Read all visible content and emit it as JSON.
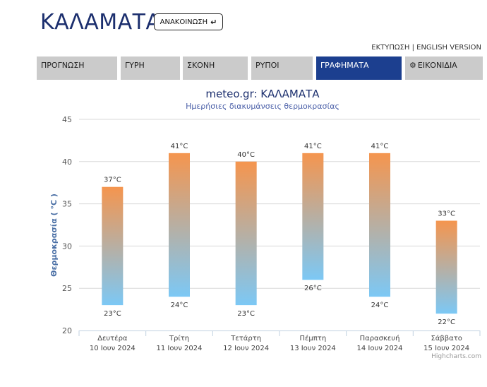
{
  "header": {
    "title": "ΚΑΛΑΜΑΤΑ",
    "announce_label": "ΑΝΑΚΟΙΝΩΣΗ",
    "announce_icon": "arrow-return-icon",
    "print_label": "ΕΚΤΥΠΩΣΗ",
    "separator": "|",
    "english_label": "ENGLISH VERSION"
  },
  "tabs": [
    {
      "label": "ΠΡΟΓΝΩΣΗ",
      "active": false
    },
    {
      "label": "ΓΥΡΗ",
      "active": false
    },
    {
      "label": "ΣΚΟΝΗ",
      "active": false
    },
    {
      "label": "ΡΥΠΟΙ",
      "active": false
    },
    {
      "label": "ΓΡΑΦΗΜΑΤΑ",
      "active": true
    },
    {
      "label": "ΕΙΚΟΝΙΔΙΑ",
      "active": false,
      "icon": "gear-icon"
    }
  ],
  "chart_data": {
    "type": "columnrange",
    "title": "meteo.gr: ΚΑΛΑΜΑΤΑ",
    "subtitle": "Ημερήσιες διακυμάνσεις θερμοκρασίας",
    "ylabel": "Θερμοκρασία ( °C )",
    "ylim": [
      20,
      45
    ],
    "yticks": [
      20,
      25,
      30,
      35,
      40,
      45
    ],
    "grid": true,
    "legend": "none",
    "categories": [
      {
        "day": "Δευτέρα",
        "date": "10 Ιουν 2024"
      },
      {
        "day": "Τρίτη",
        "date": "11 Ιουν 2024"
      },
      {
        "day": "Τετάρτη",
        "date": "12 Ιουν 2024"
      },
      {
        "day": "Πέμπτη",
        "date": "13 Ιουν 2024"
      },
      {
        "day": "Παρασκευή",
        "date": "14 Ιουν 2024"
      },
      {
        "day": "Σάββατο",
        "date": "15 Ιουν 2024"
      }
    ],
    "low": [
      23,
      24,
      23,
      26,
      24,
      22
    ],
    "high": [
      37,
      41,
      40,
      41,
      41,
      33
    ],
    "unit": "°C",
    "colors": {
      "high": "#f5954e",
      "low": "#7cc8f5",
      "title": "#1c2f6e",
      "subtitle": "#4a5fa8",
      "ylabel": "#4a6fa5"
    },
    "credits": "Highcharts.com"
  }
}
